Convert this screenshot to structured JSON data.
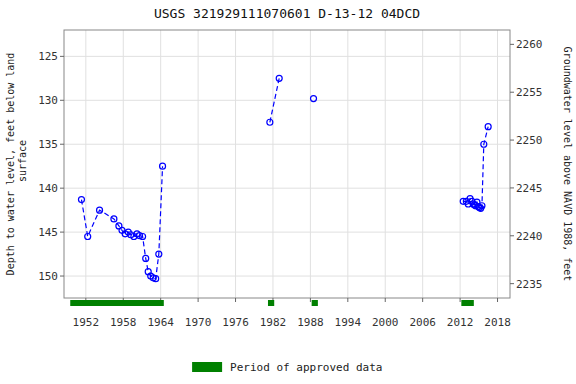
{
  "chart_data": {
    "type": "line",
    "title": "USGS 321929111070601 D-13-12 04DCD",
    "y_label": "Depth to water level, feet below land\n surface",
    "y2_label": "Groundwater level above NAVD 1988, feet",
    "xlim": [
      1948.5,
      2020.0
    ],
    "xticks": [
      1952,
      1958,
      1964,
      1970,
      1976,
      1982,
      1988,
      1994,
      2000,
      2006,
      2012,
      2018
    ],
    "ylim": [
      152.5,
      122.0
    ],
    "yticks": [
      125,
      130,
      135,
      140,
      145,
      150
    ],
    "y2lim": [
      2233.5,
      2261.5
    ],
    "y2ticks": [
      2235,
      2240,
      2245,
      2250,
      2255,
      2260
    ],
    "grid": true,
    "legend": "bottom",
    "series": [
      {
        "x": [
          1951.3,
          1952.3,
          1954.2,
          1956.5,
          1957.3,
          1957.8,
          1958.3,
          1958.8,
          1959.2,
          1959.7,
          1960.2,
          1960.6,
          1961.1,
          1961.6,
          1962.0,
          1962.4,
          1962.8,
          1963.2,
          1963.7,
          1964.3
        ],
        "values": [
          141.3,
          145.5,
          142.5,
          143.5,
          144.3,
          144.8,
          145.2,
          145.0,
          145.3,
          145.5,
          145.2,
          145.4,
          145.5,
          148.0,
          149.5,
          150.0,
          150.2,
          150.3,
          147.5,
          137.5
        ],
        "color": "#0000FF",
        "line_style": "dashed",
        "marker": "open-circle"
      },
      {
        "x": [
          1981.5,
          1983.0
        ],
        "values": [
          132.5,
          127.5
        ],
        "color": "#0000FF",
        "line_style": "dashed",
        "marker": "open-circle"
      },
      {
        "x": [
          1988.5
        ],
        "values": [
          129.8
        ],
        "color": "#0000FF",
        "line_style": "dashed",
        "marker": "open-circle"
      },
      {
        "x": [
          2012.5,
          2013.0,
          2013.3,
          2013.6,
          2013.9,
          2014.1,
          2014.3,
          2014.5,
          2014.7,
          2014.9,
          2015.1,
          2015.3,
          2015.5,
          2015.8,
          2016.5
        ],
        "values": [
          141.5,
          141.5,
          141.8,
          141.2,
          141.5,
          141.8,
          141.9,
          142.0,
          141.6,
          142.1,
          142.2,
          142.3,
          142.0,
          135.0,
          133.0
        ],
        "color": "#0000FF",
        "line_style": "dashed",
        "marker": "open-circle"
      }
    ],
    "periods": {
      "name": "Period of approved data",
      "color": "#008000",
      "ranges": [
        [
          1949.5,
          1964.5
        ],
        [
          1981.2,
          1982.2
        ],
        [
          1988.2,
          1989.2
        ],
        [
          2012.2,
          2014.2
        ]
      ]
    }
  }
}
